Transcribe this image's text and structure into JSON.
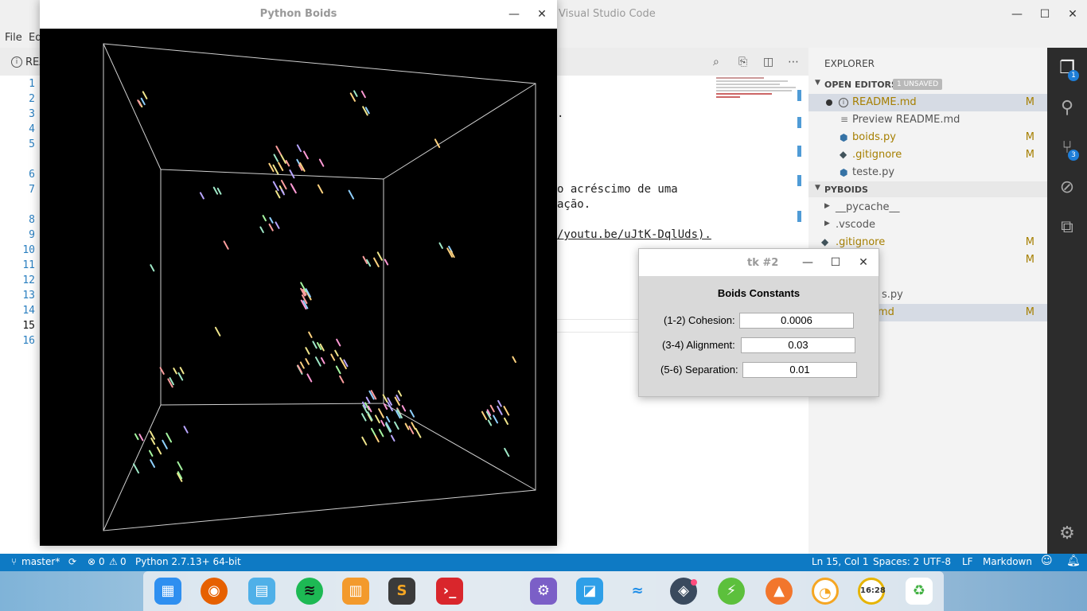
{
  "vscode": {
    "title": "Visual Studio Code",
    "menu": [
      "File",
      "Ed"
    ],
    "tab_label": "REA",
    "line_numbers": [
      "1",
      "2",
      "3",
      "4",
      "5",
      "6",
      "7",
      "8",
      "9",
      "10",
      "11",
      "12",
      "13",
      "14",
      "15",
      "16"
    ],
    "code_lines": [
      ".",
      " o acréscimo de uma",
      "ação.",
      "/youtu.be/uJtK-DqlUds)."
    ],
    "explorer": {
      "title": "EXPLORER",
      "open_editors_label": "OPEN EDITORS",
      "unsaved_badge": "1 UNSAVED",
      "open_editors": [
        {
          "name": "README.md",
          "status": "M"
        },
        {
          "name": "Preview README.md",
          "status": ""
        },
        {
          "name": "boids.py",
          "status": "M"
        },
        {
          "name": ".gitignore",
          "status": "M"
        },
        {
          "name": "teste.py",
          "status": ""
        }
      ],
      "project_label": "PYBOIDS",
      "project_items": [
        {
          "name": "__pycache__",
          "status": ""
        },
        {
          "name": ".vscode",
          "status": ""
        },
        {
          "name": ".gitignore",
          "status": "M"
        },
        {
          "name": "",
          "status": "M"
        },
        {
          "name": "s.py",
          "status": ""
        },
        {
          "name": "md",
          "status": "M"
        }
      ]
    },
    "activity_badges": {
      "explorer": "1",
      "scm": "3"
    },
    "statusbar": {
      "branch": "master*",
      "errors": "0",
      "warnings": "0",
      "python": "Python 2.7.13+ 64-bit",
      "position": "Ln 15, Col 1",
      "spaces": "Spaces: 2",
      "encoding": "UTF-8",
      "eol": "LF",
      "language": "Markdown"
    }
  },
  "boids_window": {
    "title": "Python Boids"
  },
  "tk_dialog": {
    "title": "tk #2",
    "heading": "Boids Constants",
    "fields": [
      {
        "label": "(1-2) Cohesion:",
        "value": "0.0006"
      },
      {
        "label": "(3-4) Alignment:",
        "value": "0.03"
      },
      {
        "label": "(5-6) Separation:",
        "value": "0.01"
      }
    ]
  },
  "dock": {
    "clock": "16:28",
    "icons": [
      "launcher-icon",
      "firefox-icon",
      "files-icon",
      "spotify-icon",
      "store-icon",
      "sublime-icon",
      "terminal-icon",
      "settings-icon",
      "screenshot-icon",
      "wifi-icon",
      "dropbox-icon",
      "power-icon",
      "vlc-icon",
      "update-icon",
      "clock-icon",
      "trash-icon"
    ]
  },
  "colors": {
    "statusbar": "#0e7ac4",
    "activitybar": "#2c2c2c",
    "modified": "#a67f00"
  }
}
